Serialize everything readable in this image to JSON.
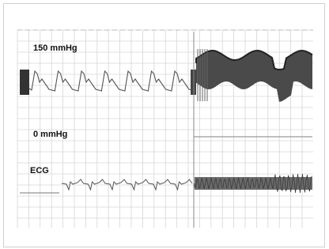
{
  "labels": {
    "pressure_high": "150 mmHg",
    "pressure_zero": "0 mmHg",
    "ecg": "ECG"
  }
}
